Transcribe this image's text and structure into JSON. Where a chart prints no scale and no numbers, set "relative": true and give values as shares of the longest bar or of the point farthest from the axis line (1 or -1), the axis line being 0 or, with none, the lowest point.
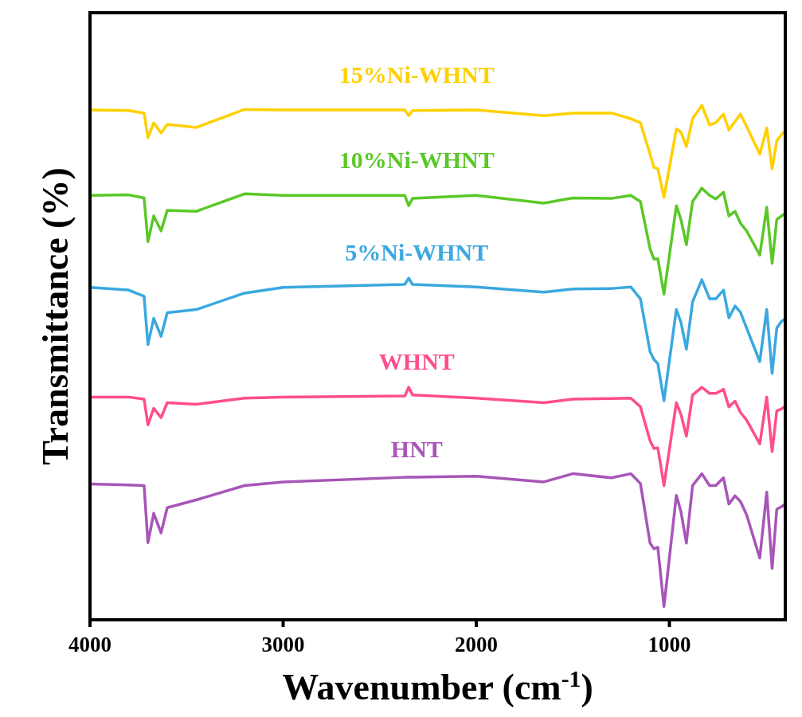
{
  "chart_data": {
    "type": "line",
    "relative": true,
    "xlabel": "Wavenumber (cm$^{-1}$)",
    "ylabel": "Transmittance (%)",
    "xlim": [
      4000,
      400
    ],
    "xticks": [
      4000,
      3000,
      2000,
      1000
    ],
    "tick_labels": "x",
    "x": [
      4000,
      3800,
      3720,
      3700,
      3670,
      3632,
      3600,
      3450,
      3200,
      3000,
      2370,
      2350,
      2330,
      2000,
      1650,
      1500,
      1300,
      1200,
      1150,
      1100,
      1080,
      1060,
      1028,
      964,
      940,
      912,
      880,
      832,
      792,
      760,
      720,
      692,
      660,
      632,
      600,
      532,
      496,
      468,
      444,
      420,
      400
    ],
    "series": [
      {
        "name": "15%Ni-WHNT",
        "color": "#ffd000",
        "values": [
          0.991,
          0.99,
          0.985,
          0.937,
          0.966,
          0.946,
          0.963,
          0.957,
          0.992,
          0.991,
          0.991,
          0.98,
          0.99,
          0.991,
          0.98,
          0.985,
          0.985,
          0.974,
          0.966,
          0.905,
          0.879,
          0.877,
          0.821,
          0.954,
          0.948,
          0.92,
          0.974,
          1.0,
          0.962,
          0.966,
          0.983,
          0.952,
          0.969,
          0.983,
          0.959,
          0.905,
          0.956,
          0.877,
          0.931,
          0.943,
          0.95
        ]
      },
      {
        "name": "10%Ni-WHNT",
        "color": "#5ac828",
        "values": [
          0.825,
          0.826,
          0.82,
          0.735,
          0.785,
          0.756,
          0.796,
          0.794,
          0.828,
          0.825,
          0.825,
          0.805,
          0.819,
          0.825,
          0.81,
          0.82,
          0.819,
          0.825,
          0.813,
          0.721,
          0.701,
          0.702,
          0.633,
          0.805,
          0.778,
          0.729,
          0.813,
          0.839,
          0.825,
          0.818,
          0.831,
          0.785,
          0.794,
          0.771,
          0.756,
          0.709,
          0.802,
          0.693,
          0.778,
          0.785,
          0.79
        ]
      },
      {
        "name": "5%Ni-WHNT",
        "color": "#3aa8e0",
        "values": [
          0.646,
          0.641,
          0.629,
          0.535,
          0.586,
          0.551,
          0.597,
          0.603,
          0.635,
          0.646,
          0.652,
          0.664,
          0.652,
          0.647,
          0.637,
          0.643,
          0.644,
          0.647,
          0.624,
          0.521,
          0.506,
          0.498,
          0.426,
          0.603,
          0.578,
          0.526,
          0.618,
          0.661,
          0.624,
          0.624,
          0.641,
          0.587,
          0.61,
          0.598,
          0.567,
          0.502,
          0.603,
          0.479,
          0.567,
          0.58,
          0.585
        ]
      },
      {
        "name": "WHNT",
        "color": "#ff4d8d",
        "values": [
          0.433,
          0.433,
          0.429,
          0.379,
          0.411,
          0.393,
          0.422,
          0.419,
          0.431,
          0.433,
          0.435,
          0.452,
          0.437,
          0.431,
          0.422,
          0.429,
          0.43,
          0.431,
          0.414,
          0.348,
          0.333,
          0.334,
          0.261,
          0.422,
          0.399,
          0.357,
          0.437,
          0.452,
          0.44,
          0.44,
          0.448,
          0.414,
          0.425,
          0.403,
          0.388,
          0.342,
          0.433,
          0.327,
          0.406,
          0.41,
          0.415
        ]
      },
      {
        "name": "HNT",
        "color": "#a855b8",
        "values": [
          0.264,
          0.262,
          0.261,
          0.15,
          0.207,
          0.169,
          0.218,
          0.233,
          0.261,
          0.268,
          0.277,
          0.277,
          0.277,
          0.279,
          0.268,
          0.284,
          0.276,
          0.284,
          0.265,
          0.149,
          0.138,
          0.141,
          0.026,
          0.242,
          0.21,
          0.149,
          0.261,
          0.284,
          0.261,
          0.261,
          0.276,
          0.225,
          0.241,
          0.23,
          0.204,
          0.12,
          0.248,
          0.1,
          0.215,
          0.22,
          0.225
        ]
      }
    ]
  }
}
